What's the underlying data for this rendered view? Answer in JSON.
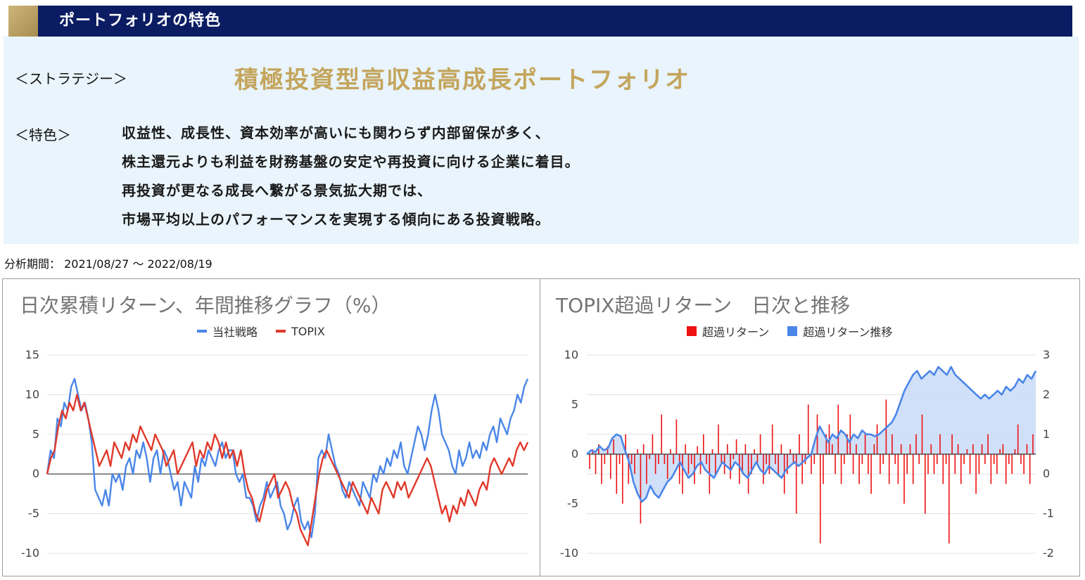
{
  "header": {
    "title": "ポートフォリオの特色"
  },
  "strategy": {
    "label": "＜ストラテジー＞",
    "name": "積極投資型高収益高成長ポートフォリオ"
  },
  "features": {
    "label": "＜特色＞",
    "lines": [
      "収益性、成長性、資本効率が高いにも関わらず内部留保が多く、",
      "株主還元よりも利益を財務基盤の安定や再投資に向ける企業に着目。",
      "再投資が更なる成長へ繋がる景気拡大期では、",
      "市場平均以上のパフォーマンスを実現する傾向にある投資戦略。"
    ]
  },
  "period": {
    "text": "分析期間： 2021/08/27 ～ 2022/08/19"
  },
  "colors": {
    "header_bg": "#0b1c63",
    "gold": "#c4a55c",
    "panel_bg": "#e9f4fc",
    "strategy_line": "#4a86e8",
    "topix_line": "#e0392b",
    "excess_bar": "#ee1111",
    "excess_area_fill": "#c9daf8"
  },
  "chart_data": [
    {
      "type": "line",
      "title": "日次累積リターン、年間推移グラフ（%）",
      "ylim": [
        -10,
        15
      ],
      "y_ticks": [
        "15",
        "10",
        "5",
        "0",
        "-5",
        "-10"
      ],
      "legend_position": "top",
      "series": [
        {
          "name": "当社戦略",
          "color": "#4a86e8",
          "values": [
            0,
            3,
            2,
            7,
            6,
            9,
            8,
            11,
            12,
            10,
            8,
            9,
            7,
            4,
            -2,
            -3,
            -4,
            -2,
            -4,
            0,
            -1,
            0,
            -2,
            1,
            2,
            0,
            3,
            2,
            4,
            2,
            -1,
            2,
            3,
            0,
            3,
            2,
            0,
            -2,
            -1,
            -4,
            -1,
            -2,
            -3,
            1,
            -1,
            2,
            1,
            3,
            2,
            1,
            3,
            4,
            2,
            3,
            3,
            0,
            -1,
            0,
            -3,
            -3,
            -4,
            -6,
            -4,
            -3,
            -1,
            -3,
            -2,
            -1,
            -4,
            -5,
            -7,
            -6,
            -4,
            -3,
            -6,
            -7,
            -6,
            -8,
            -5,
            2,
            3,
            2,
            5,
            3,
            1,
            0,
            -2,
            -3,
            -1,
            -2,
            -3,
            -4,
            -1,
            -2,
            -3,
            0,
            -1,
            1,
            0,
            2,
            1,
            3,
            2,
            4,
            1,
            0,
            2,
            4,
            6,
            5,
            3,
            5,
            8,
            10,
            8,
            5,
            4,
            3,
            1,
            0,
            3,
            1,
            2,
            4,
            2,
            3,
            2,
            4,
            3,
            5,
            6,
            4,
            7,
            6,
            5,
            7,
            8,
            10,
            9,
            11,
            12
          ]
        },
        {
          "name": "TOPIX",
          "color": "#e0392b",
          "values": [
            0,
            2,
            3,
            6,
            8,
            7,
            9,
            8,
            10,
            8,
            9,
            7,
            5,
            3,
            1,
            2,
            3,
            1,
            4,
            3,
            2,
            4,
            3,
            5,
            4,
            6,
            5,
            4,
            3,
            5,
            4,
            3,
            1,
            2,
            3,
            0,
            1,
            2,
            3,
            4,
            1,
            3,
            2,
            4,
            3,
            5,
            4,
            2,
            4,
            2,
            3,
            1,
            3,
            0,
            -2,
            -3,
            -5,
            -6,
            -4,
            -2,
            -1,
            0,
            -3,
            -2,
            -1,
            -2,
            -4,
            -5,
            -7,
            -8,
            -9,
            -6,
            -3,
            0,
            2,
            3,
            2,
            1,
            0,
            -1,
            -2,
            -3,
            -1,
            -2,
            -3,
            -4,
            -5,
            -3,
            -4,
            -5,
            -2,
            -1,
            -2,
            -3,
            -1,
            -2,
            -1,
            -3,
            -2,
            -1,
            0,
            1,
            2,
            1,
            -1,
            -3,
            -5,
            -4,
            -6,
            -4,
            -5,
            -3,
            -4,
            -2,
            -3,
            -4,
            -2,
            -1,
            -2,
            1,
            2,
            1,
            0,
            1,
            2,
            1,
            3,
            4,
            3,
            4
          ]
        }
      ]
    },
    {
      "type": "bar",
      "title": "TOPIX超過リターン　日次と推移",
      "ylim": [
        -10,
        10
      ],
      "y2lim": [
        -2,
        3
      ],
      "y_ticks": [
        "10",
        "5",
        "0",
        "-5",
        "-10"
      ],
      "y2_ticks": [
        "3",
        "2",
        "1",
        "0",
        "-1",
        "-2"
      ],
      "legend_position": "top",
      "series": [
        {
          "name": "超過リターン",
          "color": "#ee1111",
          "axis": "left",
          "values": [
            -1.5,
            0.5,
            -2,
            1,
            -3,
            -1,
            0.8,
            -2.5,
            1.5,
            -4,
            -1,
            -5,
            2,
            -3,
            -1,
            -2,
            0.5,
            -7,
            1,
            -3,
            -0.5,
            2,
            -2,
            -1,
            4,
            -1,
            -2.5,
            0.5,
            -1,
            3.5,
            -3,
            -4,
            1,
            -2,
            -1,
            -3,
            0.8,
            -2,
            2,
            -1,
            -4,
            0.5,
            -2,
            3,
            -1,
            -2,
            1,
            -2.5,
            -0.5,
            1.5,
            -3,
            -2,
            1,
            -4,
            -2,
            0.5,
            -1,
            2,
            -3,
            -1,
            -2,
            3,
            -1,
            -2,
            1,
            -4,
            -2,
            0.5,
            -1,
            -6,
            2,
            -3,
            -1,
            5,
            -2,
            -1,
            4,
            -9,
            -3,
            2,
            3,
            1,
            -2,
            5,
            -3,
            -1,
            2,
            4,
            -2,
            1,
            -3,
            -1,
            2,
            -2,
            -4,
            1,
            3,
            -2,
            -1,
            5.5,
            -3,
            2,
            -1,
            -3,
            1,
            -5,
            -2,
            1,
            -3,
            2,
            -1,
            4,
            -6,
            -2,
            1,
            -2,
            -1,
            2,
            -3,
            -1,
            -9,
            2,
            -2,
            1,
            -3,
            -1,
            0.5,
            -2,
            1,
            -4,
            -2,
            1,
            -1,
            2,
            -3,
            -1,
            -2,
            0.5,
            1,
            -3,
            -1,
            -2,
            0.5,
            3,
            -1,
            -2,
            1,
            -3,
            2
          ]
        },
        {
          "name": "超過リターン推移",
          "color": "#4a86e8",
          "axis": "right",
          "values": [
            0.5,
            0.6,
            0.55,
            0.7,
            0.6,
            0.65,
            0.9,
            1.0,
            0.95,
            0.6,
            0.3,
            -0.2,
            -0.5,
            -0.7,
            -0.6,
            -0.3,
            -0.5,
            -0.6,
            -0.4,
            -0.2,
            -0.1,
            0.1,
            0.3,
            0.1,
            -0.1,
            0.0,
            0.2,
            0.3,
            0.1,
            0.0,
            -0.1,
            0.1,
            0.3,
            0.2,
            0.1,
            0.3,
            0.2,
            0.0,
            -0.1,
            0.1,
            0.3,
            0.1,
            0.0,
            0.2,
            0.1,
            0.0,
            -0.1,
            0.1,
            0.2,
            0.3,
            0.2,
            0.3,
            0.4,
            0.5,
            0.9,
            1.2,
            1.0,
            0.8,
            1.0,
            0.9,
            1.1,
            1.0,
            0.8,
            1.0,
            0.9,
            1.1,
            1.0,
            1.0,
            0.95,
            1.0,
            1.1,
            1.2,
            1.3,
            1.5,
            1.8,
            2.1,
            2.3,
            2.5,
            2.6,
            2.4,
            2.5,
            2.6,
            2.5,
            2.7,
            2.6,
            2.5,
            2.7,
            2.5,
            2.4,
            2.3,
            2.2,
            2.1,
            2.0,
            1.9,
            2.0,
            1.9,
            2.0,
            2.1,
            2.0,
            2.2,
            2.1,
            2.2,
            2.4,
            2.3,
            2.5,
            2.4,
            2.6
          ]
        }
      ]
    }
  ]
}
